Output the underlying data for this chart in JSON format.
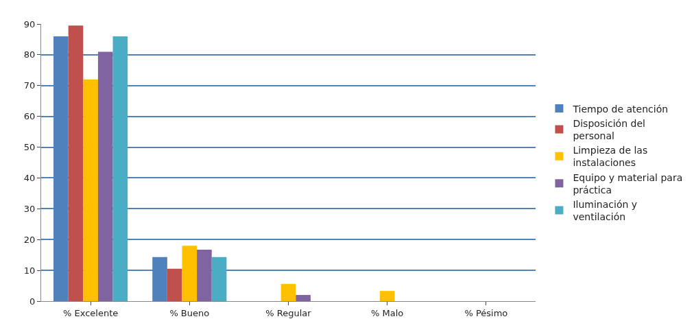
{
  "chart_data": {
    "type": "bar",
    "categories": [
      "% Excelente",
      "% Bueno",
      "% Regular",
      "% Malo",
      "% Pésimo"
    ],
    "series": [
      {
        "name": "Tiempo de atención",
        "color": "#4f81bd",
        "values": [
          86,
          14.3,
          0,
          0,
          0
        ]
      },
      {
        "name": "Disposición del personal",
        "color": "#c0504d",
        "values": [
          89.5,
          10.5,
          0,
          0,
          0
        ]
      },
      {
        "name": "Limpieza de las instalaciones",
        "color": "#ffc000",
        "values": [
          72,
          18,
          5.6,
          3.3,
          0
        ]
      },
      {
        "name": "Equipo y material para práctica",
        "color": "#8064a2",
        "values": [
          81,
          16.7,
          2,
          0,
          0
        ]
      },
      {
        "name": "Iluminación y ventilación",
        "color": "#4bacc6",
        "values": [
          86,
          14.3,
          0,
          0,
          0
        ]
      }
    ],
    "ylim": [
      0,
      90
    ],
    "yticks": [
      0,
      10,
      20,
      30,
      40,
      50,
      60,
      70,
      80,
      90
    ],
    "grid": "y",
    "legend": "right"
  }
}
